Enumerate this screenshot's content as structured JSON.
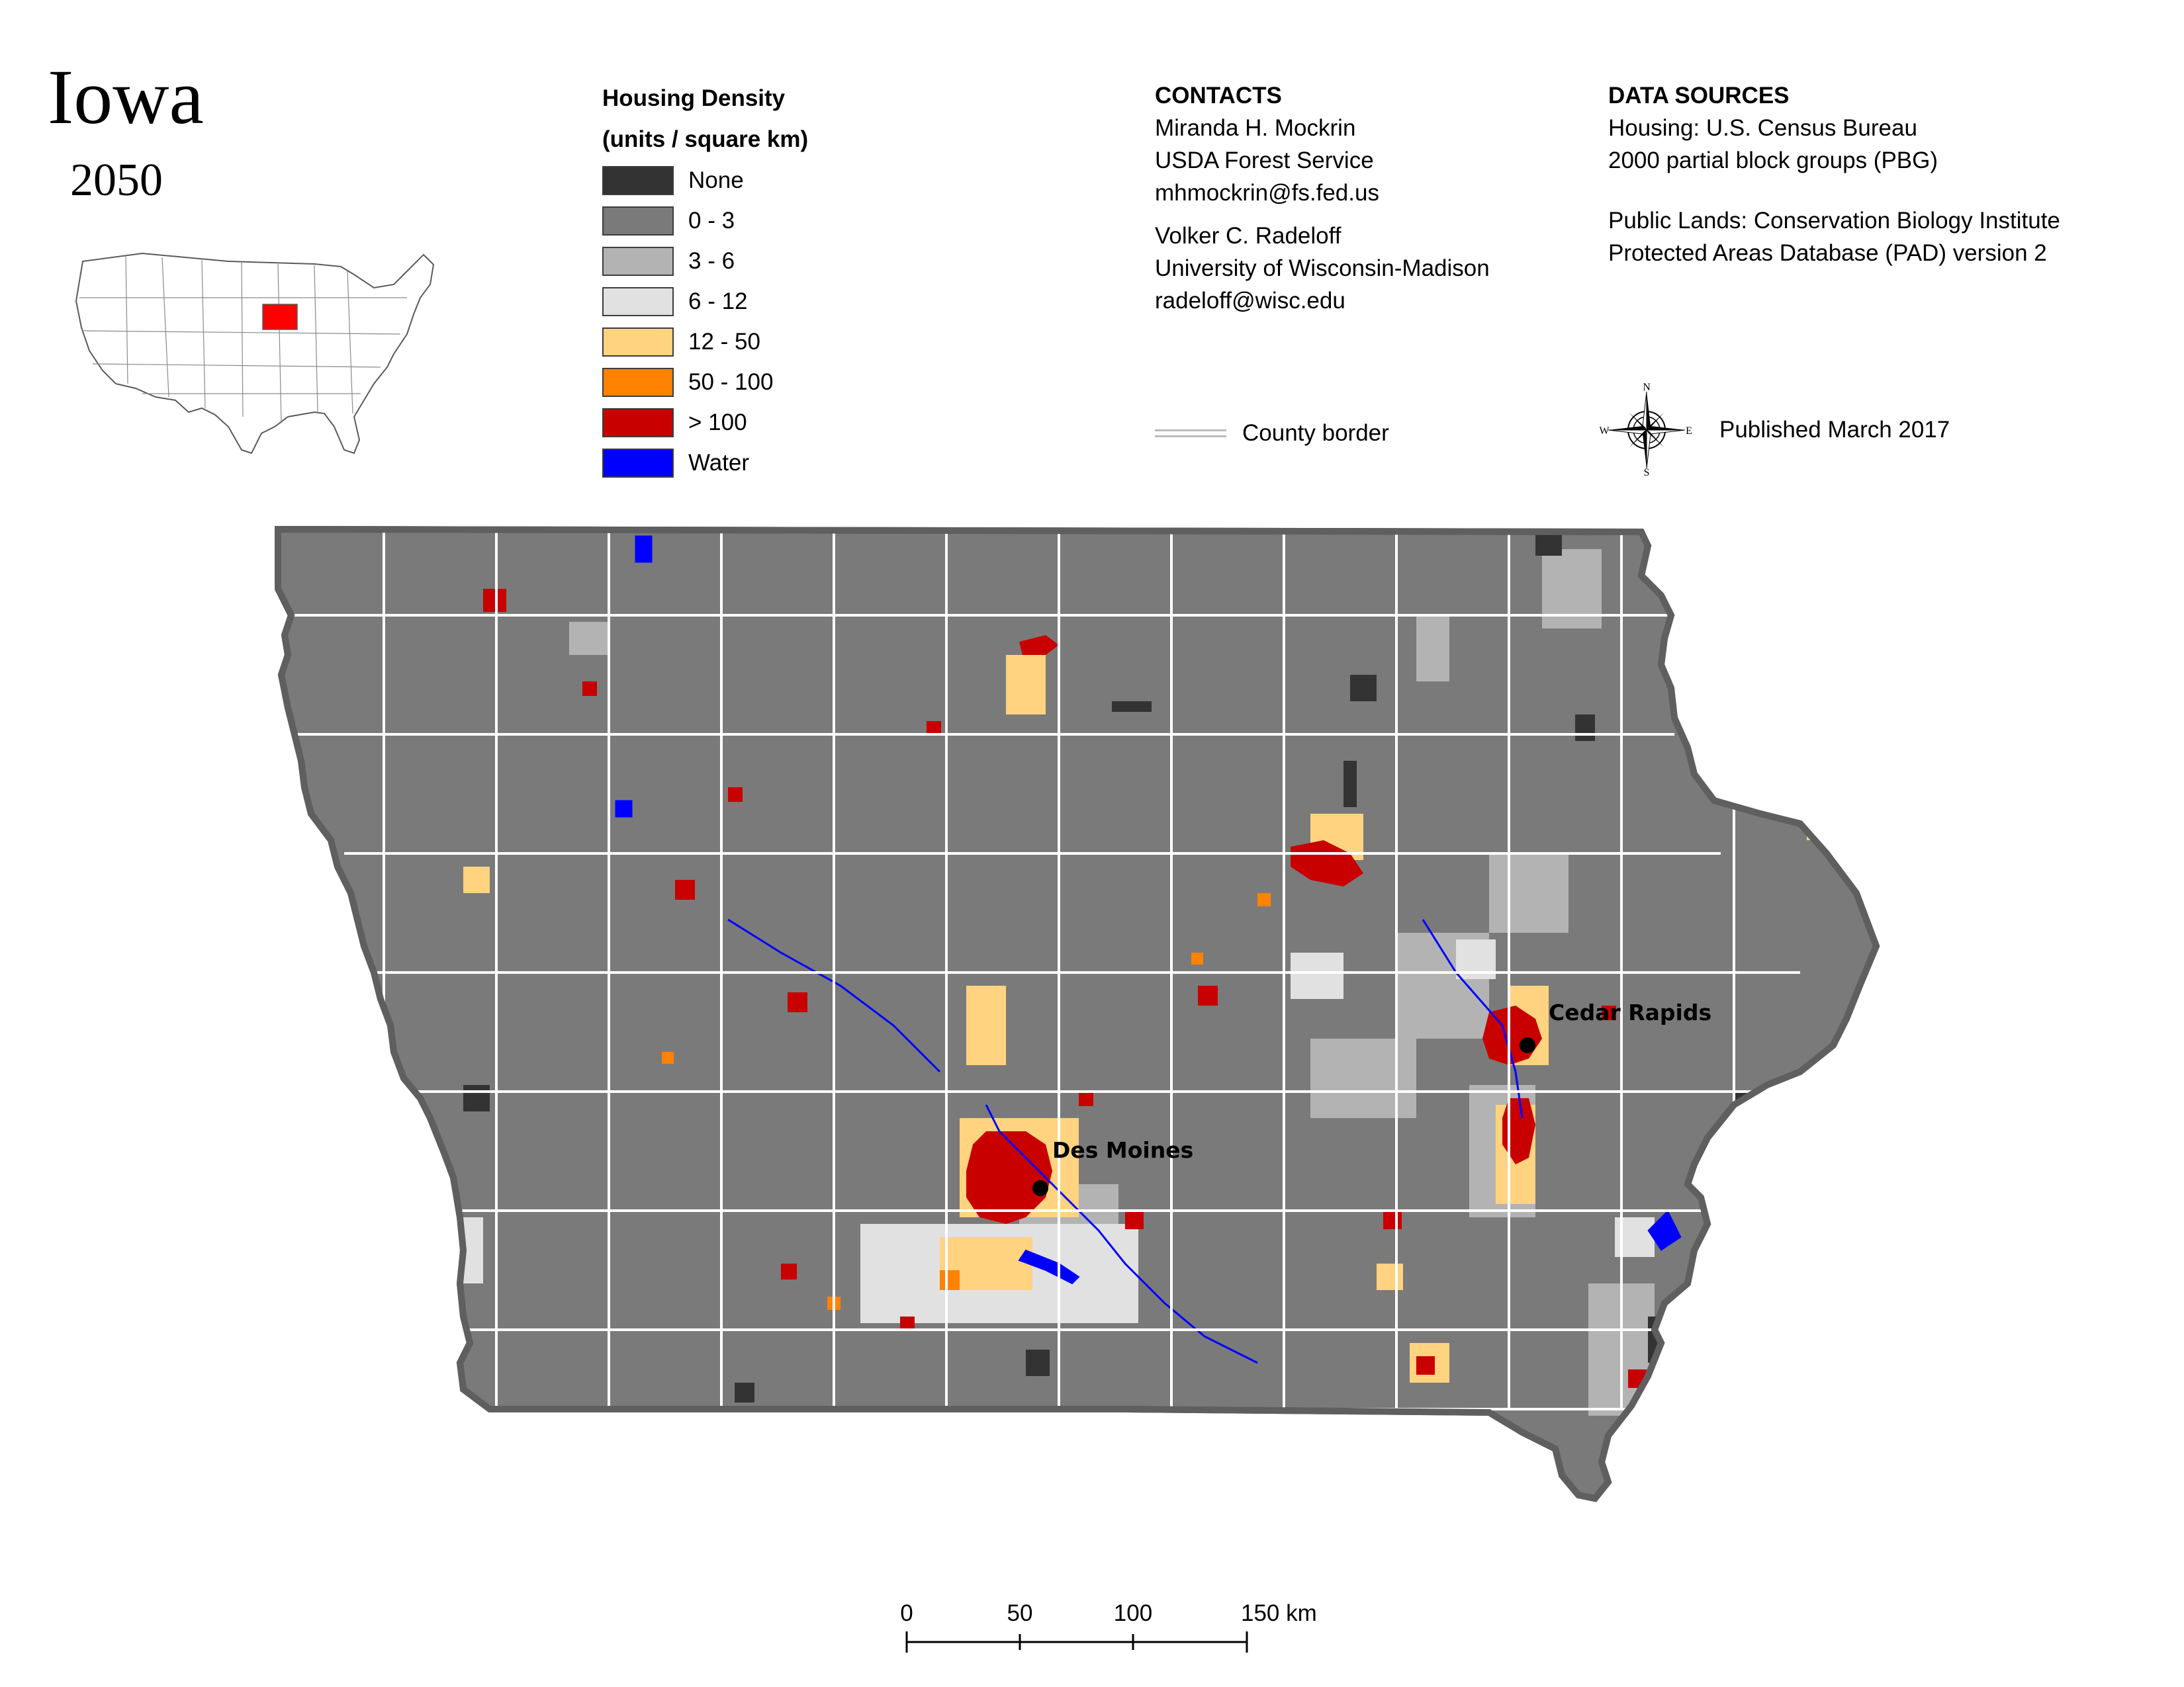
{
  "title": "Iowa",
  "year": "2050",
  "inset": {
    "highlight_color": "#ff0000",
    "note": ""
  },
  "legend": {
    "title_line1": "Housing Density",
    "title_line2": "(units / square km)",
    "items": [
      {
        "label": "None",
        "color": "#333333"
      },
      {
        "label": "0 - 3",
        "color": "#7a7a7a"
      },
      {
        "label": "3 - 6",
        "color": "#b3b3b3"
      },
      {
        "label": "6 - 12",
        "color": "#e1e1e1"
      },
      {
        "label": "12 - 50",
        "color": "#ffd37f"
      },
      {
        "label": "50 - 100",
        "color": "#ff8200"
      },
      {
        "label": "> 100",
        "color": "#c80000"
      },
      {
        "label": "Water",
        "color": "#0000ff"
      }
    ]
  },
  "contacts": {
    "heading": "CONTACTS",
    "person1": {
      "name": "Miranda H. Mockrin",
      "org": "USDA Forest Service",
      "email": "mhmockrin@fs.fed.us"
    },
    "person2": {
      "name": "Volker C. Radeloff",
      "org": "University of Wisconsin-Madison",
      "email": "radeloff@wisc.edu"
    }
  },
  "data_sources": {
    "heading": "DATA SOURCES",
    "housing_line1": "Housing: U.S. Census Bureau",
    "housing_line2": "2000 partial block groups (PBG)",
    "public_line1": "Public Lands: Conservation Biology Institute",
    "public_line2": "Protected Areas Database (PAD) version 2"
  },
  "county_border_label": "County border",
  "published": "Published March 2017",
  "compass": {
    "n": "N",
    "s": "S",
    "e": "E",
    "w": "W"
  },
  "cities": [
    {
      "name": "Des Moines"
    },
    {
      "name": "Cedar Rapids"
    }
  ],
  "scale": {
    "ticks": [
      "0",
      "50",
      "100",
      "150 km"
    ]
  },
  "icons": {
    "compass": "compass-rose-icon",
    "city": "city-dot-icon"
  }
}
